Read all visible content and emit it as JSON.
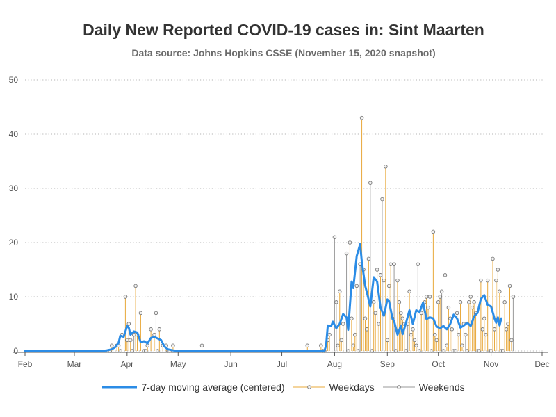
{
  "chart_data": {
    "type": "line",
    "title": "Daily New Reported COVID-19 cases in: Sint Maarten",
    "subtitle": "Data source: Johns Hopkins CSSE (November 15, 2020 snapshot)",
    "xlabel": "",
    "ylabel": "",
    "x_axis": {
      "type": "date",
      "range": [
        "2020-02-01",
        "2020-12-01"
      ],
      "tick_labels": [
        "Feb",
        "Mar",
        "Apr",
        "May",
        "Jun",
        "Jul",
        "Aug",
        "Sep",
        "Oct",
        "Nov",
        "Dec"
      ],
      "tick_dates": [
        "2020-02-01",
        "2020-03-01",
        "2020-04-01",
        "2020-05-01",
        "2020-06-01",
        "2020-07-01",
        "2020-08-01",
        "2020-09-01",
        "2020-10-01",
        "2020-11-01",
        "2020-12-01"
      ]
    },
    "y_axis": {
      "range": [
        0,
        50
      ],
      "ticks": [
        0,
        10,
        20,
        30,
        40,
        50
      ]
    },
    "grid": {
      "horizontal": true,
      "style": "dotted"
    },
    "legend": {
      "position": "bottom"
    },
    "colors": {
      "moving_average": "#2b8ce6",
      "weekdays": "#e8a83a",
      "weekends": "#9a9a9a",
      "marker_fill": "#f2f2f2",
      "marker_stroke": "#777777"
    },
    "series": [
      {
        "name": "7-day moving average (centered)",
        "kind": "line",
        "points": [
          [
            "2020-03-17",
            0.0
          ],
          [
            "2020-03-20",
            0.1
          ],
          [
            "2020-03-23",
            0.3
          ],
          [
            "2020-03-25",
            0.7
          ],
          [
            "2020-03-27",
            1.5
          ],
          [
            "2020-03-28",
            2.8
          ],
          [
            "2020-03-30",
            2.6
          ],
          [
            "2020-04-01",
            4.6
          ],
          [
            "2020-04-02",
            4.3
          ],
          [
            "2020-04-03",
            3.0
          ],
          [
            "2020-04-05",
            3.6
          ],
          [
            "2020-04-07",
            3.4
          ],
          [
            "2020-04-09",
            1.6
          ],
          [
            "2020-04-11",
            1.8
          ],
          [
            "2020-04-13",
            1.4
          ],
          [
            "2020-04-15",
            2.4
          ],
          [
            "2020-04-17",
            2.6
          ],
          [
            "2020-04-19",
            2.3
          ],
          [
            "2020-04-21",
            2.0
          ],
          [
            "2020-04-23",
            0.8
          ],
          [
            "2020-04-25",
            0.3
          ],
          [
            "2020-04-28",
            0.1
          ],
          [
            "2020-05-02",
            0.0
          ],
          [
            "2020-07-26",
            0.0
          ],
          [
            "2020-07-27",
            1.0
          ],
          [
            "2020-07-28",
            4.7
          ],
          [
            "2020-07-30",
            4.6
          ],
          [
            "2020-07-31",
            5.4
          ],
          [
            "2020-08-02",
            4.2
          ],
          [
            "2020-08-04",
            5.0
          ],
          [
            "2020-08-06",
            6.8
          ],
          [
            "2020-08-08",
            6.2
          ],
          [
            "2020-08-09",
            3.9
          ],
          [
            "2020-08-11",
            12.8
          ],
          [
            "2020-08-12",
            11.6
          ],
          [
            "2020-08-14",
            17.5
          ],
          [
            "2020-08-16",
            19.7
          ],
          [
            "2020-08-17",
            16.5
          ],
          [
            "2020-08-19",
            12.0
          ],
          [
            "2020-08-20",
            10.8
          ],
          [
            "2020-08-22",
            8.2
          ],
          [
            "2020-08-24",
            13.6
          ],
          [
            "2020-08-26",
            12.8
          ],
          [
            "2020-08-28",
            8.0
          ],
          [
            "2020-08-30",
            6.5
          ],
          [
            "2020-09-01",
            9.5
          ],
          [
            "2020-09-02",
            9.2
          ],
          [
            "2020-09-04",
            6.0
          ],
          [
            "2020-09-05",
            5.5
          ],
          [
            "2020-09-07",
            3.0
          ],
          [
            "2020-09-09",
            4.7
          ],
          [
            "2020-09-10",
            3.1
          ],
          [
            "2020-09-12",
            5.2
          ],
          [
            "2020-09-14",
            7.5
          ],
          [
            "2020-09-16",
            5.0
          ],
          [
            "2020-09-18",
            7.5
          ],
          [
            "2020-09-20",
            7.2
          ],
          [
            "2020-09-22",
            8.9
          ],
          [
            "2020-09-24",
            5.9
          ],
          [
            "2020-09-26",
            6.2
          ],
          [
            "2020-09-28",
            6.0
          ],
          [
            "2020-09-30",
            4.5
          ],
          [
            "2020-10-02",
            4.2
          ],
          [
            "2020-10-04",
            4.6
          ],
          [
            "2020-10-06",
            4.0
          ],
          [
            "2020-10-08",
            5.0
          ],
          [
            "2020-10-10",
            6.7
          ],
          [
            "2020-10-12",
            6.0
          ],
          [
            "2020-10-14",
            4.3
          ],
          [
            "2020-10-16",
            4.7
          ],
          [
            "2020-10-18",
            5.2
          ],
          [
            "2020-10-20",
            4.6
          ],
          [
            "2020-10-22",
            6.4
          ],
          [
            "2020-10-24",
            7.0
          ],
          [
            "2020-10-26",
            9.6
          ],
          [
            "2020-10-28",
            10.3
          ],
          [
            "2020-10-30",
            8.5
          ],
          [
            "2020-11-01",
            8.2
          ],
          [
            "2020-11-03",
            6.0
          ],
          [
            "2020-11-04",
            5.2
          ],
          [
            "2020-11-05",
            6.2
          ],
          [
            "2020-11-06",
            4.7
          ],
          [
            "2020-11-07",
            6.0
          ]
        ]
      },
      {
        "name": "Weekdays",
        "kind": "needle",
        "points": [
          [
            "2020-03-23",
            1
          ],
          [
            "2020-03-26",
            1
          ],
          [
            "2020-03-27",
            1
          ],
          [
            "2020-03-31",
            10
          ],
          [
            "2020-04-01",
            2
          ],
          [
            "2020-04-02",
            5
          ],
          [
            "2020-04-03",
            2
          ],
          [
            "2020-04-06",
            12
          ],
          [
            "2020-04-07",
            3
          ],
          [
            "2020-04-09",
            7
          ],
          [
            "2020-04-13",
            1
          ],
          [
            "2020-04-15",
            4
          ],
          [
            "2020-04-17",
            3
          ],
          [
            "2020-04-20",
            4
          ],
          [
            "2020-04-22",
            1
          ],
          [
            "2020-04-24",
            1
          ],
          [
            "2020-04-28",
            1
          ],
          [
            "2020-05-15",
            1
          ],
          [
            "2020-07-16",
            1
          ],
          [
            "2020-07-24",
            1
          ],
          [
            "2020-07-28",
            2
          ],
          [
            "2020-07-29",
            3
          ],
          [
            "2020-08-03",
            1
          ],
          [
            "2020-08-04",
            11
          ],
          [
            "2020-08-05",
            2
          ],
          [
            "2020-08-06",
            5
          ],
          [
            "2020-08-10",
            20
          ],
          [
            "2020-08-11",
            6
          ],
          [
            "2020-08-12",
            1
          ],
          [
            "2020-08-13",
            3
          ],
          [
            "2020-08-14",
            12
          ],
          [
            "2020-08-17",
            43
          ],
          [
            "2020-08-18",
            15
          ],
          [
            "2020-08-19",
            6
          ],
          [
            "2020-08-20",
            4
          ],
          [
            "2020-08-21",
            17
          ],
          [
            "2020-08-24",
            9
          ],
          [
            "2020-08-25",
            7
          ],
          [
            "2020-08-26",
            15
          ],
          [
            "2020-08-27",
            5
          ],
          [
            "2020-08-28",
            14
          ],
          [
            "2020-08-31",
            34
          ],
          [
            "2020-09-01",
            2
          ],
          [
            "2020-09-02",
            12
          ],
          [
            "2020-09-03",
            16
          ],
          [
            "2020-09-04",
            6
          ],
          [
            "2020-09-07",
            13
          ],
          [
            "2020-09-08",
            9
          ],
          [
            "2020-09-09",
            7
          ],
          [
            "2020-09-10",
            6
          ],
          [
            "2020-09-11",
            5
          ],
          [
            "2020-09-14",
            11
          ],
          [
            "2020-09-15",
            3
          ],
          [
            "2020-09-16",
            4
          ],
          [
            "2020-09-17",
            2
          ],
          [
            "2020-09-18",
            1
          ],
          [
            "2020-09-21",
            7
          ],
          [
            "2020-09-22",
            8
          ],
          [
            "2020-09-23",
            9
          ],
          [
            "2020-09-24",
            10
          ],
          [
            "2020-09-25",
            8
          ],
          [
            "2020-09-28",
            22
          ],
          [
            "2020-09-29",
            3
          ],
          [
            "2020-09-30",
            2
          ],
          [
            "2020-10-01",
            9
          ],
          [
            "2020-10-02",
            10
          ],
          [
            "2020-10-05",
            14
          ],
          [
            "2020-10-06",
            1
          ],
          [
            "2020-10-07",
            8
          ],
          [
            "2020-10-08",
            6
          ],
          [
            "2020-10-09",
            4
          ],
          [
            "2020-10-12",
            7
          ],
          [
            "2020-10-13",
            3
          ],
          [
            "2020-10-14",
            9
          ],
          [
            "2020-10-15",
            1
          ],
          [
            "2020-10-16",
            5
          ],
          [
            "2020-10-19",
            9
          ],
          [
            "2020-10-20",
            10
          ],
          [
            "2020-10-21",
            8
          ],
          [
            "2020-10-22",
            9
          ],
          [
            "2020-10-23",
            7
          ],
          [
            "2020-10-26",
            13
          ],
          [
            "2020-10-27",
            4
          ],
          [
            "2020-10-28",
            6
          ],
          [
            "2020-10-29",
            3
          ],
          [
            "2020-10-30",
            13
          ],
          [
            "2020-11-02",
            17
          ],
          [
            "2020-11-03",
            4
          ],
          [
            "2020-11-04",
            13
          ],
          [
            "2020-11-05",
            15
          ],
          [
            "2020-11-06",
            11
          ],
          [
            "2020-11-09",
            9
          ],
          [
            "2020-11-10",
            4
          ],
          [
            "2020-11-11",
            5
          ],
          [
            "2020-11-12",
            12
          ],
          [
            "2020-11-13",
            2
          ]
        ]
      },
      {
        "name": "Weekends",
        "kind": "needle",
        "points": [
          [
            "2020-03-21",
            0
          ],
          [
            "2020-03-22",
            0
          ],
          [
            "2020-03-28",
            0
          ],
          [
            "2020-03-29",
            3
          ],
          [
            "2020-04-04",
            0
          ],
          [
            "2020-04-05",
            3
          ],
          [
            "2020-04-11",
            0
          ],
          [
            "2020-04-12",
            0
          ],
          [
            "2020-04-18",
            7
          ],
          [
            "2020-04-19",
            0
          ],
          [
            "2020-04-25",
            0
          ],
          [
            "2020-04-26",
            0
          ],
          [
            "2020-07-25",
            0
          ],
          [
            "2020-07-26",
            0
          ],
          [
            "2020-08-01",
            21
          ],
          [
            "2020-08-02",
            9
          ],
          [
            "2020-08-08",
            18
          ],
          [
            "2020-08-09",
            0
          ],
          [
            "2020-08-15",
            0
          ],
          [
            "2020-08-16",
            16
          ],
          [
            "2020-08-22",
            31
          ],
          [
            "2020-08-23",
            0
          ],
          [
            "2020-08-29",
            28
          ],
          [
            "2020-08-30",
            13
          ],
          [
            "2020-09-05",
            16
          ],
          [
            "2020-09-06",
            0
          ],
          [
            "2020-09-12",
            0
          ],
          [
            "2020-09-13",
            5
          ],
          [
            "2020-09-19",
            16
          ],
          [
            "2020-09-20",
            0
          ],
          [
            "2020-09-26",
            10
          ],
          [
            "2020-09-27",
            0
          ],
          [
            "2020-10-03",
            11
          ],
          [
            "2020-10-04",
            0
          ],
          [
            "2020-10-10",
            0
          ],
          [
            "2020-10-11",
            0
          ],
          [
            "2020-10-17",
            3
          ],
          [
            "2020-10-18",
            0
          ],
          [
            "2020-10-24",
            0
          ],
          [
            "2020-10-25",
            0
          ],
          [
            "2020-10-31",
            0
          ],
          [
            "2020-11-01",
            0
          ],
          [
            "2020-11-07",
            0
          ],
          [
            "2020-11-08",
            0
          ],
          [
            "2020-11-14",
            10
          ]
        ]
      }
    ]
  },
  "legend_labels": {
    "moving_average": "7-day moving average (centered)",
    "weekdays": "Weekdays",
    "weekends": "Weekends"
  }
}
